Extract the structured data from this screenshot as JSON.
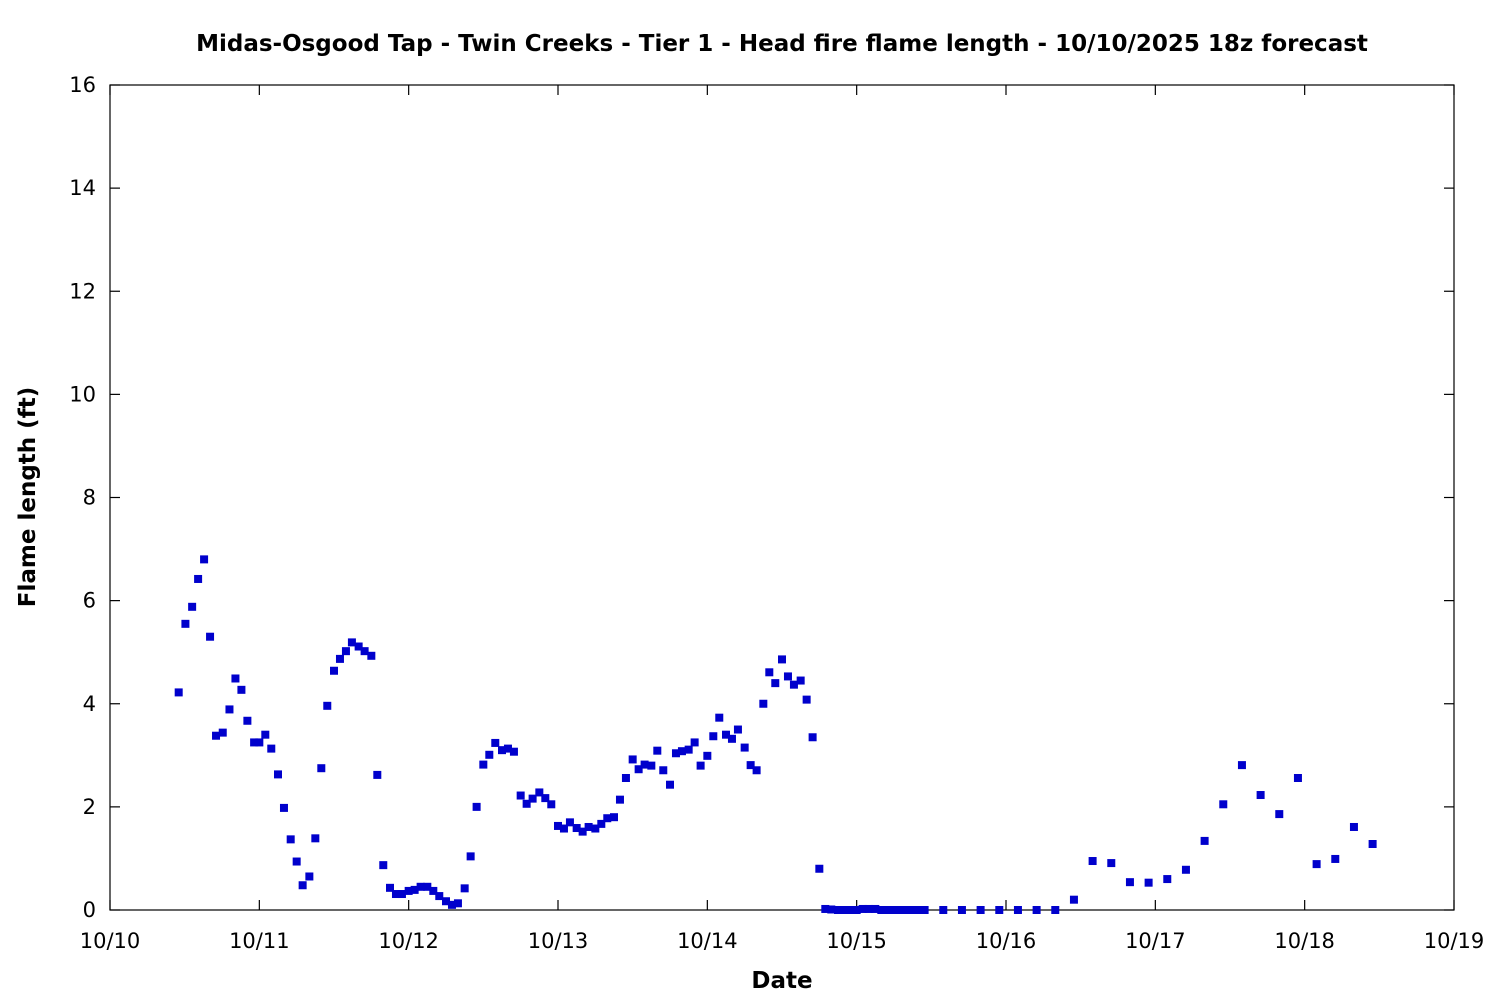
{
  "chart_data": {
    "type": "scatter",
    "title": "Midas-Osgood Tap - Twin Creeks - Tier 1 - Head fire flame length - 10/10/2025 18z forecast",
    "xlabel": "Date",
    "ylabel": "Flame length (ft)",
    "xlim": [
      0,
      9
    ],
    "ylim": [
      0,
      16
    ],
    "x_ticks": [
      {
        "value": 0,
        "label": "10/10"
      },
      {
        "value": 1,
        "label": "10/11"
      },
      {
        "value": 2,
        "label": "10/12"
      },
      {
        "value": 3,
        "label": "10/13"
      },
      {
        "value": 4,
        "label": "10/14"
      },
      {
        "value": 5,
        "label": "10/15"
      },
      {
        "value": 6,
        "label": "10/16"
      },
      {
        "value": 7,
        "label": "10/17"
      },
      {
        "value": 8,
        "label": "10/18"
      },
      {
        "value": 9,
        "label": "10/19"
      }
    ],
    "y_ticks": [
      {
        "value": 0,
        "label": "0"
      },
      {
        "value": 2,
        "label": "2"
      },
      {
        "value": 4,
        "label": "4"
      },
      {
        "value": 6,
        "label": "6"
      },
      {
        "value": 8,
        "label": "8"
      },
      {
        "value": 10,
        "label": "10"
      },
      {
        "value": 12,
        "label": "12"
      },
      {
        "value": 14,
        "label": "14"
      },
      {
        "value": 16,
        "label": "16"
      }
    ],
    "grid": false,
    "marker_color": "#0000cc",
    "series": [
      {
        "points": [
          [
            0.46,
            4.22
          ],
          [
            0.505,
            5.55
          ],
          [
            0.55,
            5.88
          ],
          [
            0.59,
            6.42
          ],
          [
            0.63,
            6.8
          ],
          [
            0.67,
            5.3
          ],
          [
            0.71,
            3.38
          ],
          [
            0.755,
            3.44
          ],
          [
            0.8,
            3.89
          ],
          [
            0.84,
            4.49
          ],
          [
            0.88,
            4.27
          ],
          [
            0.92,
            3.67
          ],
          [
            0.965,
            3.25
          ],
          [
            1.0,
            3.25
          ],
          [
            1.04,
            3.4
          ],
          [
            1.08,
            3.13
          ],
          [
            1.125,
            2.63
          ],
          [
            1.165,
            1.98
          ],
          [
            1.21,
            1.37
          ],
          [
            1.25,
            0.94
          ],
          [
            1.29,
            0.48
          ],
          [
            1.335,
            0.65
          ],
          [
            1.375,
            1.39
          ],
          [
            1.415,
            2.75
          ],
          [
            1.455,
            3.96
          ],
          [
            1.5,
            4.64
          ],
          [
            1.54,
            4.87
          ],
          [
            1.58,
            5.02
          ],
          [
            1.62,
            5.19
          ],
          [
            1.665,
            5.11
          ],
          [
            1.705,
            5.02
          ],
          [
            1.75,
            4.93
          ],
          [
            1.79,
            2.62
          ],
          [
            1.83,
            0.87
          ],
          [
            1.875,
            0.43
          ],
          [
            1.915,
            0.31
          ],
          [
            1.955,
            0.31
          ],
          [
            2.0,
            0.37
          ],
          [
            2.04,
            0.39
          ],
          [
            2.08,
            0.45
          ],
          [
            2.125,
            0.45
          ],
          [
            2.165,
            0.37
          ],
          [
            2.205,
            0.27
          ],
          [
            2.25,
            0.17
          ],
          [
            2.29,
            0.1
          ],
          [
            2.33,
            0.13
          ],
          [
            2.375,
            0.42
          ],
          [
            2.415,
            1.04
          ],
          [
            2.455,
            2.0
          ],
          [
            2.5,
            2.82
          ],
          [
            2.54,
            3.01
          ],
          [
            2.58,
            3.24
          ],
          [
            2.625,
            3.1
          ],
          [
            2.665,
            3.13
          ],
          [
            2.705,
            3.07
          ],
          [
            2.75,
            2.22
          ],
          [
            2.79,
            2.06
          ],
          [
            2.83,
            2.16
          ],
          [
            2.875,
            2.28
          ],
          [
            2.915,
            2.17
          ],
          [
            2.955,
            2.05
          ],
          [
            3.0,
            1.63
          ],
          [
            3.04,
            1.58
          ],
          [
            3.08,
            1.7
          ],
          [
            3.125,
            1.59
          ],
          [
            3.165,
            1.52
          ],
          [
            3.205,
            1.61
          ],
          [
            3.25,
            1.58
          ],
          [
            3.29,
            1.67
          ],
          [
            3.33,
            1.78
          ],
          [
            3.375,
            1.8
          ],
          [
            3.415,
            2.14
          ],
          [
            3.455,
            2.56
          ],
          [
            3.5,
            2.92
          ],
          [
            3.54,
            2.73
          ],
          [
            3.58,
            2.82
          ],
          [
            3.625,
            2.8
          ],
          [
            3.665,
            3.09
          ],
          [
            3.705,
            2.71
          ],
          [
            3.75,
            2.43
          ],
          [
            3.79,
            3.04
          ],
          [
            3.83,
            3.08
          ],
          [
            3.875,
            3.11
          ],
          [
            3.915,
            3.25
          ],
          [
            3.955,
            2.8
          ],
          [
            4.0,
            2.99
          ],
          [
            4.04,
            3.37
          ],
          [
            4.08,
            3.73
          ],
          [
            4.125,
            3.4
          ],
          [
            4.165,
            3.32
          ],
          [
            4.205,
            3.5
          ],
          [
            4.25,
            3.15
          ],
          [
            4.29,
            2.81
          ],
          [
            4.33,
            2.71
          ],
          [
            4.375,
            4.0
          ],
          [
            4.415,
            4.61
          ],
          [
            4.455,
            4.4
          ],
          [
            4.5,
            4.86
          ],
          [
            4.54,
            4.53
          ],
          [
            4.58,
            4.37
          ],
          [
            4.625,
            4.45
          ],
          [
            4.665,
            4.08
          ],
          [
            4.705,
            3.35
          ],
          [
            4.75,
            0.8
          ],
          [
            4.79,
            0.02
          ],
          [
            4.83,
            0.01
          ],
          [
            4.875,
            0.0
          ],
          [
            4.915,
            0.0
          ],
          [
            4.955,
            0.0
          ],
          [
            5.0,
            0.0
          ],
          [
            5.04,
            0.02
          ],
          [
            5.08,
            0.02
          ],
          [
            5.125,
            0.02
          ],
          [
            5.165,
            0.0
          ],
          [
            5.205,
            0.0
          ],
          [
            5.25,
            0.0
          ],
          [
            5.29,
            0.0
          ],
          [
            5.33,
            0.0
          ],
          [
            5.375,
            0.0
          ],
          [
            5.415,
            0.0
          ],
          [
            5.455,
            0.0
          ],
          [
            5.58,
            0.0
          ],
          [
            5.705,
            0.0
          ],
          [
            5.83,
            0.0
          ],
          [
            5.955,
            0.0
          ],
          [
            6.08,
            0.0
          ],
          [
            6.205,
            0.0
          ],
          [
            6.33,
            0.0
          ],
          [
            6.455,
            0.2
          ],
          [
            6.58,
            0.95
          ],
          [
            6.705,
            0.91
          ],
          [
            6.83,
            0.54
          ],
          [
            6.955,
            0.53
          ],
          [
            7.08,
            0.6
          ],
          [
            7.205,
            0.78
          ],
          [
            7.33,
            1.34
          ],
          [
            7.455,
            2.05
          ],
          [
            7.58,
            2.81
          ],
          [
            7.705,
            2.23
          ],
          [
            7.83,
            1.86
          ],
          [
            7.955,
            2.56
          ],
          [
            8.08,
            0.89
          ],
          [
            8.205,
            0.99
          ],
          [
            8.33,
            1.61
          ],
          [
            8.455,
            1.28
          ]
        ]
      }
    ]
  }
}
